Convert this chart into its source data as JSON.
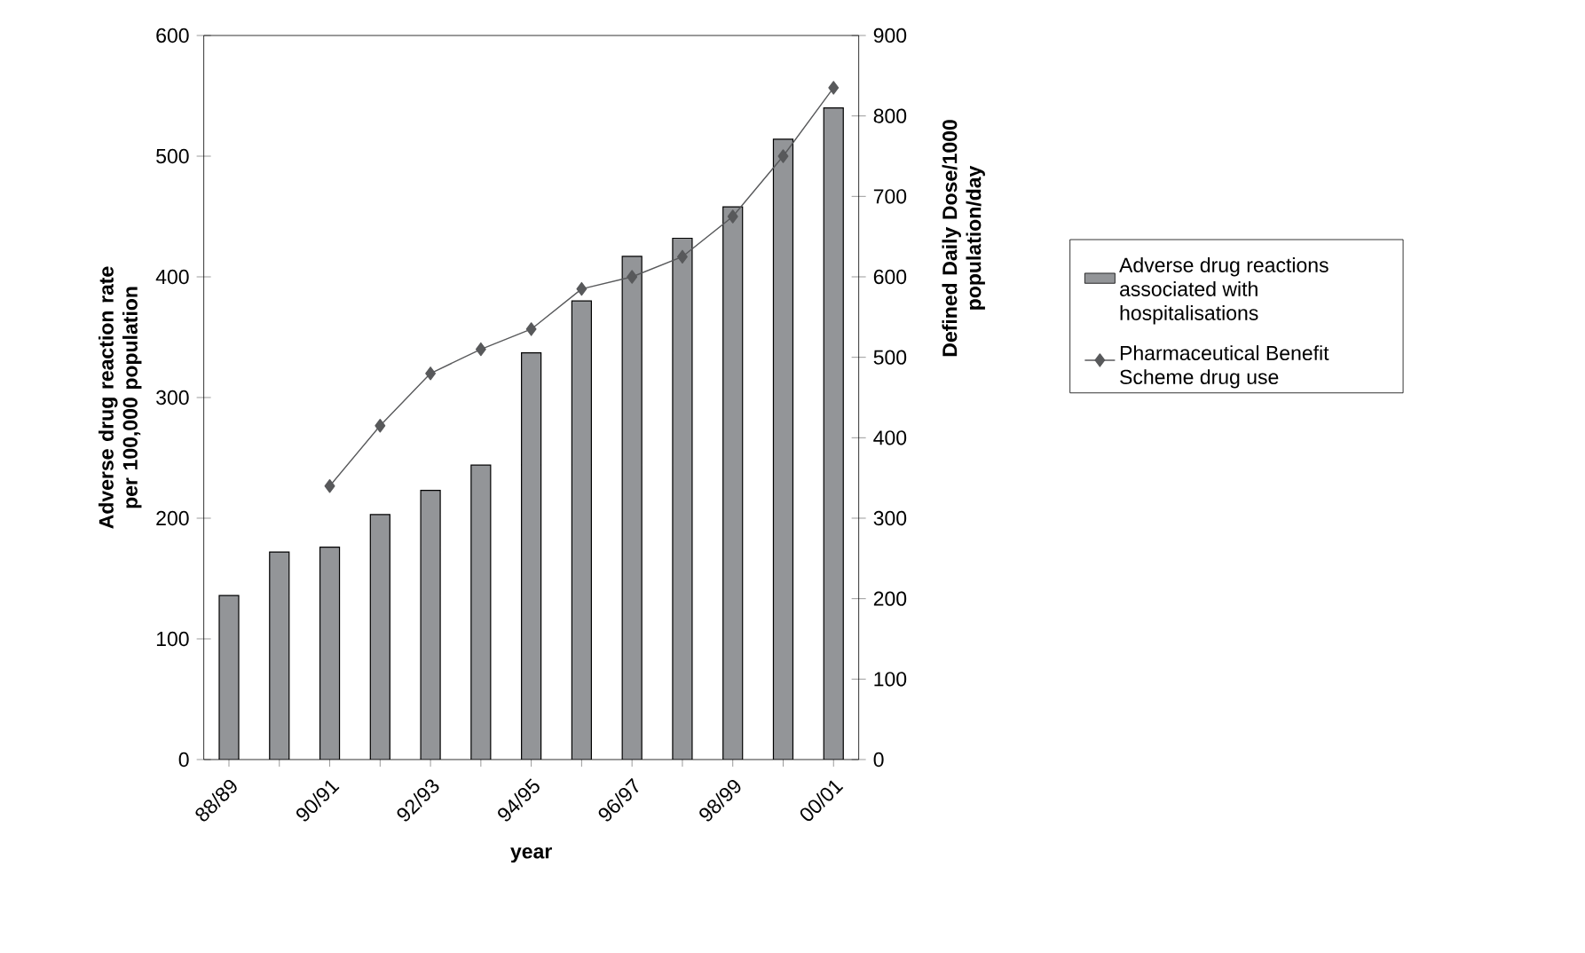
{
  "chart_data": {
    "type": "bar",
    "xlabel": "year",
    "ylabel": "Adverse drug reaction rate per 100,000 population",
    "y2label": "Defined Daily Dose/1000 population/day",
    "categories": [
      "88/89",
      null,
      "90/91",
      null,
      "92/93",
      null,
      "94/95",
      null,
      "96/97",
      null,
      "98/99",
      null,
      "00/01"
    ],
    "series": [
      {
        "name": "Adverse drug reactions associated with hospitalisations",
        "color": "#939598",
        "values": [
          136,
          172,
          176,
          203,
          223,
          244,
          337,
          380,
          417,
          432,
          458,
          514,
          540
        ]
      },
      {
        "name": "Pharmaceutical Benefit Scheme drug use",
        "type": "line",
        "axis": "y2",
        "color": "#58595b",
        "marker": "diamond",
        "values": [
          null,
          null,
          340,
          415,
          480,
          510,
          535,
          585,
          600,
          625,
          675,
          750,
          835
        ]
      }
    ],
    "ylim": [
      0,
      600
    ],
    "yticks": [
      0,
      100,
      200,
      300,
      400,
      500,
      600
    ],
    "y2lim": [
      0,
      900
    ],
    "y2ticks": [
      0,
      100,
      200,
      300,
      400,
      500,
      600,
      700,
      800,
      900
    ],
    "grid": false,
    "legend": "right"
  }
}
